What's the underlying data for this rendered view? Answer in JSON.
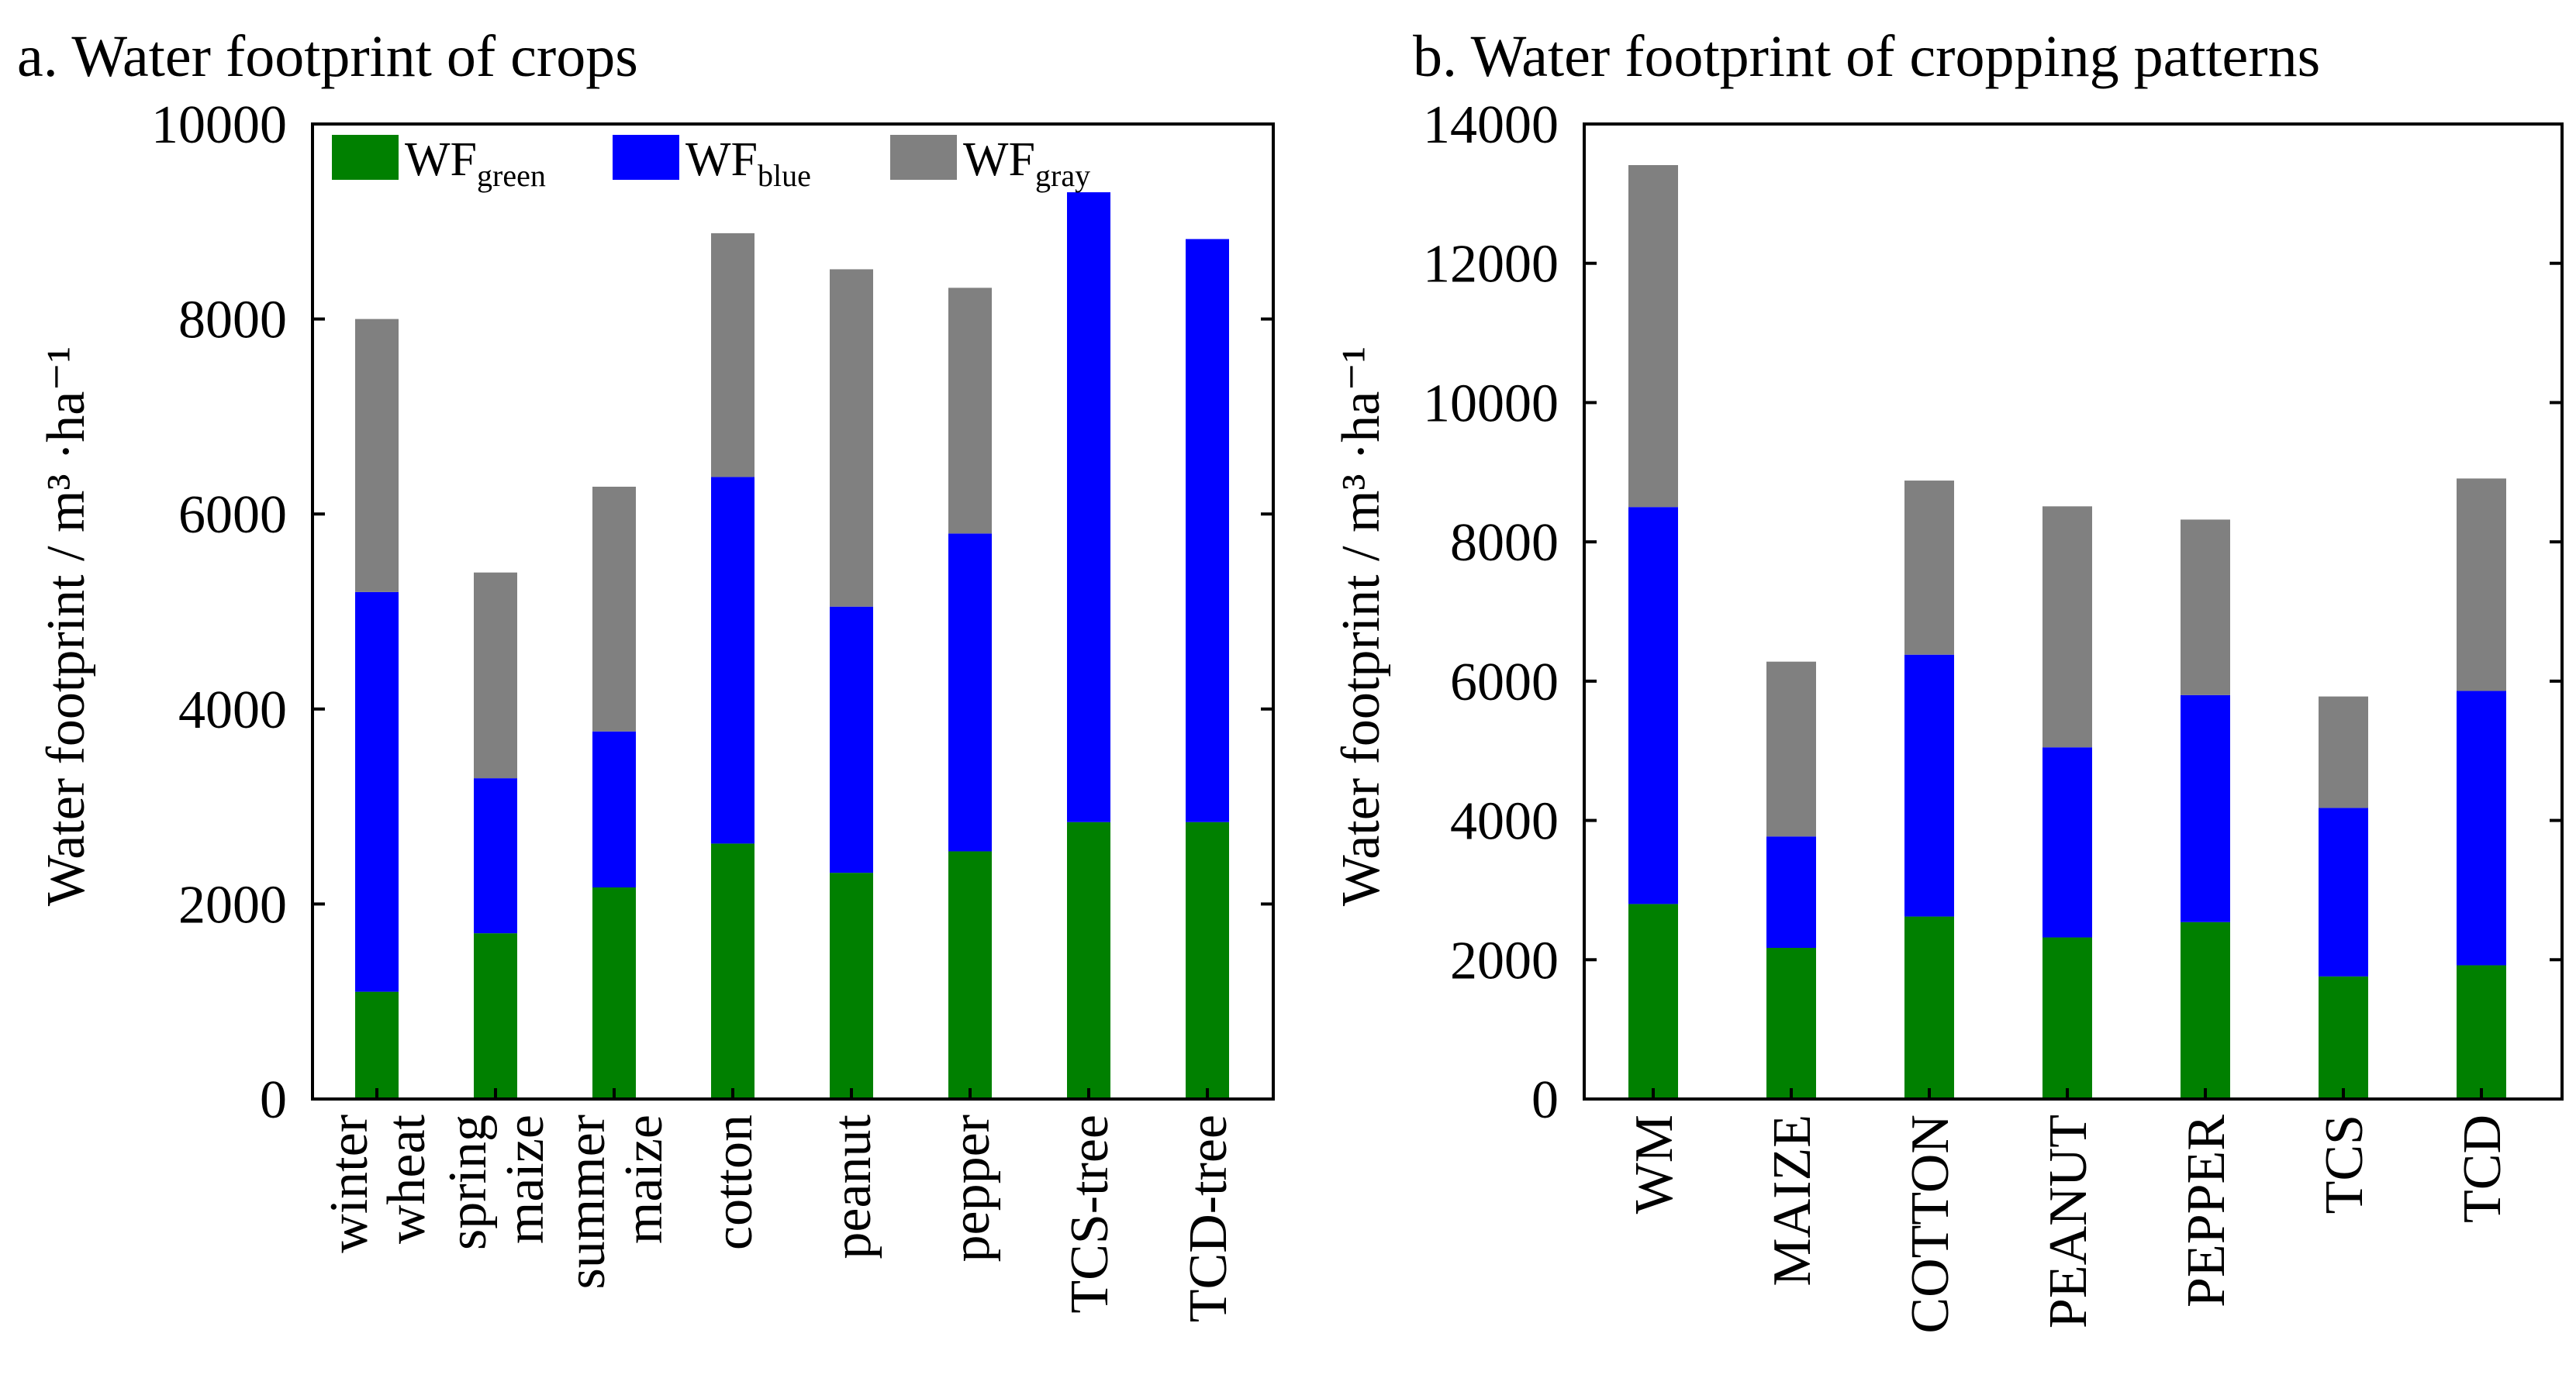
{
  "colors": {
    "green": "#008000",
    "blue": "#0000ff",
    "gray": "#808080"
  },
  "legend": [
    {
      "key": "green",
      "base": "WF",
      "sub": "green"
    },
    {
      "key": "blue",
      "base": "WF",
      "sub": "blue"
    },
    {
      "key": "gray",
      "base": "WF",
      "sub": "gray"
    }
  ],
  "chart_data": [
    {
      "type": "bar",
      "stacked": true,
      "title": "a. Water footprint of crops",
      "ylabel": "Water footprint / m³ ·ha⁻¹",
      "ylim": [
        0,
        10000
      ],
      "yticks": [
        "0",
        "2000",
        "4000",
        "6000",
        "8000",
        "10000"
      ],
      "categories": [
        [
          "winter",
          "wheat"
        ],
        [
          "spring",
          "maize"
        ],
        [
          "summer",
          "maize"
        ],
        [
          "cotton"
        ],
        [
          "peanut"
        ],
        [
          "pepper"
        ],
        [
          "TCS-tree"
        ],
        [
          "TCD-tree"
        ]
      ],
      "series": [
        {
          "name": "WF green",
          "color_key": "green",
          "values": [
            1100,
            1700,
            2170,
            2620,
            2320,
            2540,
            2840,
            2840
          ]
        },
        {
          "name": "WF blue",
          "color_key": "blue",
          "values": [
            4100,
            1590,
            1600,
            3760,
            2730,
            3260,
            6460,
            5980
          ]
        },
        {
          "name": "WF gray",
          "color_key": "gray",
          "values": [
            2800,
            2110,
            2510,
            2500,
            3460,
            2520,
            0,
            0
          ]
        }
      ]
    },
    {
      "type": "bar",
      "stacked": true,
      "title": "b. Water footprint of cropping patterns",
      "ylabel": "Water footprint / m³ ·ha⁻¹",
      "ylim": [
        0,
        14000
      ],
      "yticks": [
        "0",
        "2000",
        "4000",
        "6000",
        "8000",
        "10000",
        "12000",
        "14000"
      ],
      "categories": [
        [
          "WM"
        ],
        [
          "MAIZE"
        ],
        [
          "COTTON"
        ],
        [
          "PEANUT"
        ],
        [
          "PEPPER"
        ],
        [
          "TCS"
        ],
        [
          "TCD"
        ]
      ],
      "series": [
        {
          "name": "WF green",
          "color_key": "green",
          "values": [
            2800,
            2170,
            2620,
            2320,
            2540,
            1760,
            1920
          ]
        },
        {
          "name": "WF blue",
          "color_key": "blue",
          "values": [
            5700,
            1600,
            3760,
            2730,
            3260,
            2420,
            3940
          ]
        },
        {
          "name": "WF gray",
          "color_key": "gray",
          "values": [
            4910,
            2510,
            2500,
            3460,
            2520,
            1600,
            3050
          ]
        }
      ]
    }
  ]
}
